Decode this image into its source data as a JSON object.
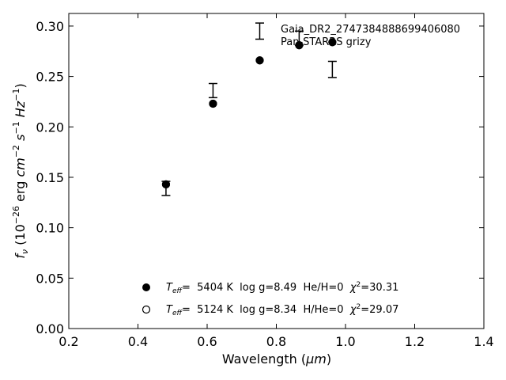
{
  "chart_data": {
    "type": "scatter",
    "xlabel_pre": "Wavelength (",
    "xlabel_unit": "μm",
    "xlabel_post": ")",
    "ylabel_parts": {
      "sym": "f",
      "sub": "ν",
      "pre": " (10",
      "exp1": "−26",
      "mid": " erg ",
      "cm": "cm",
      "exp2": "−2",
      "s": "s",
      "exp3": "−1",
      "hz": "Hz",
      "exp4": "−1",
      "post": ")"
    },
    "xlim": [
      0.2,
      1.4
    ],
    "ylim": [
      0.0,
      0.3125
    ],
    "xticks": [
      "0.2",
      "0.4",
      "0.6",
      "0.8",
      "1.0",
      "1.2",
      "1.4"
    ],
    "yticks": [
      "0.00",
      "0.05",
      "0.10",
      "0.15",
      "0.20",
      "0.25",
      "0.30"
    ],
    "annotations": [
      "Gaia_DR2_2747384888699406080",
      "Pan-STARRS grizy"
    ],
    "observed": [
      {
        "x": 0.481,
        "y": 0.139,
        "err": 0.007
      },
      {
        "x": 0.617,
        "y": 0.236,
        "err": 0.007
      },
      {
        "x": 0.752,
        "y": 0.295,
        "err": 0.008
      },
      {
        "x": 0.866,
        "y": 0.288,
        "err": 0.007
      },
      {
        "x": 0.962,
        "y": 0.257,
        "err": 0.008
      }
    ],
    "series": [
      {
        "marker": "filled",
        "legend": {
          "T": "T",
          "Tsub": "eff",
          "text1": "=  5404 K  log g=8.49  He/H=0  ",
          "chi": "χ",
          "chisup": "2",
          "text2": "=30.31"
        },
        "points": [
          {
            "x": 0.481,
            "y": 0.143
          },
          {
            "x": 0.617,
            "y": 0.223
          },
          {
            "x": 0.752,
            "y": 0.266
          },
          {
            "x": 0.866,
            "y": 0.281
          },
          {
            "x": 0.962,
            "y": 0.284
          }
        ]
      },
      {
        "marker": "open",
        "legend": {
          "T": "T",
          "Tsub": "eff",
          "text1": "=  5124 K  log g=8.34  H/He=0  ",
          "chi": "χ",
          "chisup": "2",
          "text2": "=29.07"
        },
        "points": [
          {
            "x": 0.481,
            "y": 0.143
          },
          {
            "x": 0.617,
            "y": 0.223
          },
          {
            "x": 0.752,
            "y": 0.266
          },
          {
            "x": 0.866,
            "y": 0.281
          },
          {
            "x": 0.962,
            "y": 0.284
          }
        ]
      }
    ],
    "legend_position": "lower-center",
    "grid": false,
    "colors": {
      "marker": "#000000",
      "axis": "#000000"
    }
  }
}
